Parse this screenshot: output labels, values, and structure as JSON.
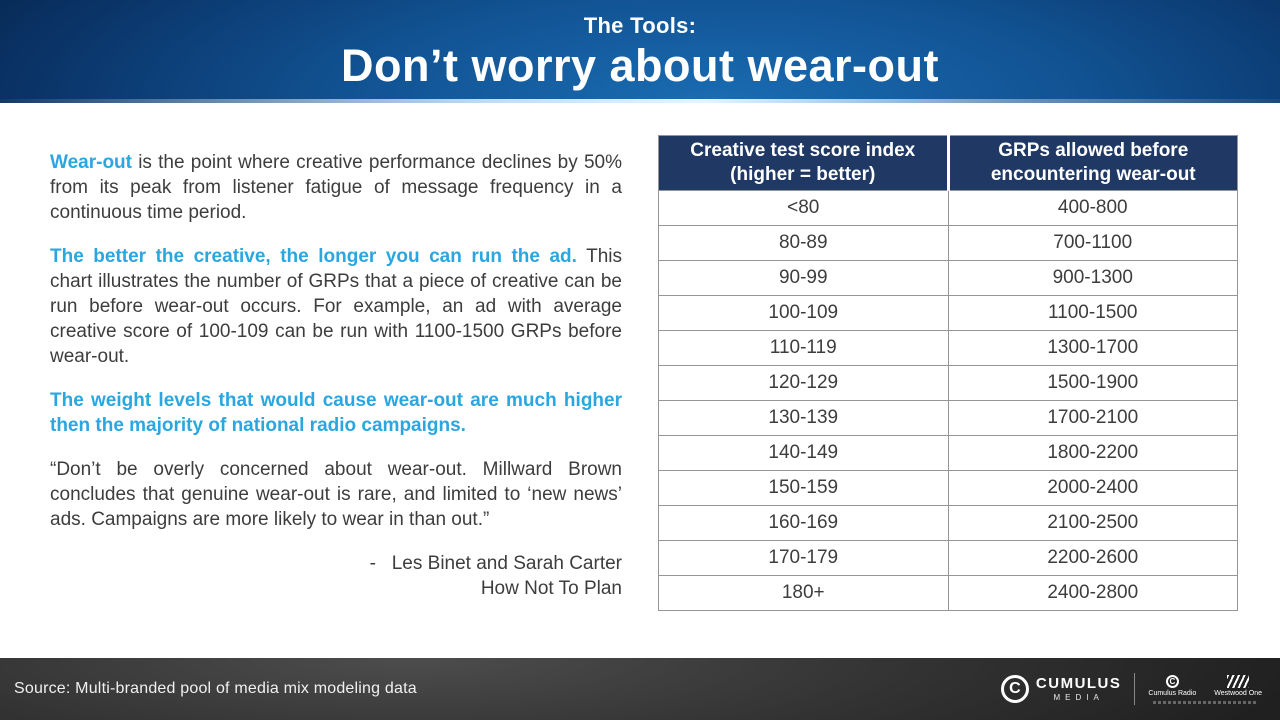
{
  "header": {
    "kicker": "The Tools:",
    "title": "Don’t worry about wear-out"
  },
  "left_column": {
    "p1": {
      "lead": "Wear-out",
      "rest": " is the point where creative performance declines by 50% from its peak from listener fatigue of message frequency in a continuous time period."
    },
    "p2": {
      "lead": "The better the creative, the longer you can run the ad.",
      "rest": " This chart illustrates the number of GRPs that a piece of creative can be run before wear-out occurs. For example, an ad with average creative score of 100-109 can be run with 1100-1500 GRPs before wear-out."
    },
    "p3": "The weight levels that would cause wear-out are much higher then the majority of national radio campaigns.",
    "quote": "“Don’t be overly concerned about wear-out. Millward Brown concludes that genuine wear-out is rare, and limited to ‘new news’ ads. Campaigns are more likely to wear in than out.”",
    "attribution_line1": "-   Les Binet and Sarah Carter",
    "attribution_line2": "How Not To Plan"
  },
  "table": {
    "headers": [
      "Creative test score index (higher = better)",
      "GRPs allowed before encountering wear-out"
    ],
    "rows": [
      [
        "<80",
        "400-800"
      ],
      [
        "80-89",
        "700-1100"
      ],
      [
        "90-99",
        "900-1300"
      ],
      [
        "100-109",
        "1100-1500"
      ],
      [
        "110-119",
        "1300-1700"
      ],
      [
        "120-129",
        "1500-1900"
      ],
      [
        "130-139",
        "1700-2100"
      ],
      [
        "140-149",
        "1800-2200"
      ],
      [
        "150-159",
        "2000-2400"
      ],
      [
        "160-169",
        "2100-2500"
      ],
      [
        "170-179",
        "2200-2600"
      ],
      [
        "180+",
        "2400-2800"
      ]
    ]
  },
  "footer": {
    "source": "Source: Multi-branded pool of media mix modeling data",
    "logos": {
      "cumulus_icon_letter": "C",
      "cumulus_name": "CUMULUS",
      "cumulus_media": "MEDIA",
      "cumulus_radio_icon_letter": "C",
      "cumulus_radio": "Cumulus Radio",
      "westwood_one": "Westwood One"
    }
  },
  "colors": {
    "accent_blue": "#2BA6DF",
    "header_navy_dark": "#051C3A",
    "header_navy_light": "#1A6CB2",
    "table_header_bg": "#1F3864",
    "table_border": "#959595",
    "body_text": "#3D3D3D",
    "footer_bg": "#2E2E2E"
  }
}
